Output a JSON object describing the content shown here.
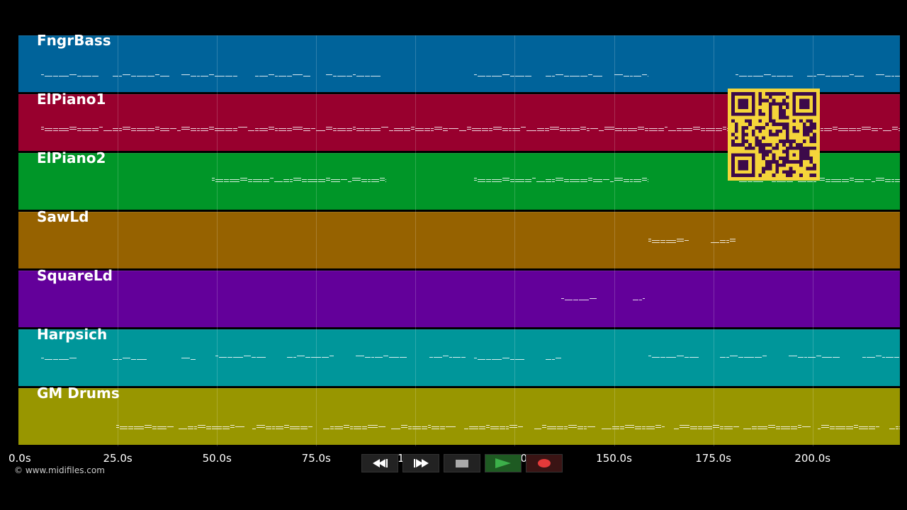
{
  "tracks": [
    {
      "name": "FngrBass",
      "color": "#00639a"
    },
    {
      "name": "ElPiano1",
      "color": "#98002e"
    },
    {
      "name": "ElPiano2",
      "color": "#009628"
    },
    {
      "name": "SawLd",
      "color": "#966200"
    },
    {
      "name": "SquareLd",
      "color": "#63009a"
    },
    {
      "name": "Harpsich",
      "color": "#00969a"
    },
    {
      "name": "GM Drums",
      "color": "#989600"
    }
  ],
  "timeline": {
    "max_seconds": 222,
    "ticks": [
      "0.0s",
      "25.0s",
      "50.0s",
      "75.0s",
      "100.0s",
      "125.0s",
      "150.0s",
      "175.0s",
      "200.0s"
    ]
  },
  "copyright": "© www.midifiles.com",
  "transport": {
    "rewind_icon": "rewind-icon",
    "fast_forward_icon": "fast-forward-icon",
    "stop_icon": "stop-icon",
    "play_icon": "play-icon",
    "record_icon": "record-icon"
  },
  "qr_colors": {
    "background": "#f5d53a",
    "modules": "#3c0a4a"
  }
}
